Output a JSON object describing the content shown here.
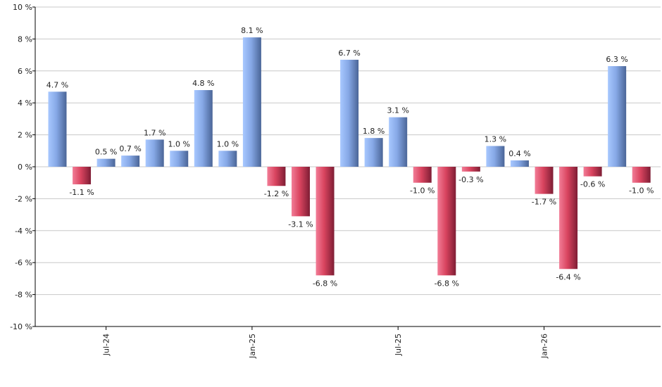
{
  "chart_data": {
    "type": "bar",
    "title": "",
    "xlabel": "",
    "ylabel": "",
    "ylim": [
      -10,
      10
    ],
    "ytick_step": 2,
    "ytick_suffix": " %",
    "grid": true,
    "legend": "none",
    "value_suffix": " %",
    "x_tick_labels": [
      {
        "label": "Jul-24",
        "index": 2
      },
      {
        "label": "Jan-25",
        "index": 8
      },
      {
        "label": "Jul-25",
        "index": 14
      },
      {
        "label": "Jan-26",
        "index": 20
      }
    ],
    "values": [
      4.7,
      -1.1,
      0.5,
      0.7,
      1.7,
      1.0,
      4.8,
      1.0,
      8.1,
      -1.2,
      -3.1,
      -6.8,
      6.7,
      1.8,
      3.1,
      -1.0,
      -6.8,
      -0.3,
      1.3,
      0.4,
      -1.7,
      -6.4,
      -0.6,
      6.3,
      -1.0
    ],
    "colors": {
      "positive_light": "#a8c8ff",
      "positive_dark": "#4a6597",
      "negative_light": "#f27d97",
      "negative_dark": "#7e1d34",
      "grid": "#c8c8c8",
      "axis": "#000000"
    }
  }
}
